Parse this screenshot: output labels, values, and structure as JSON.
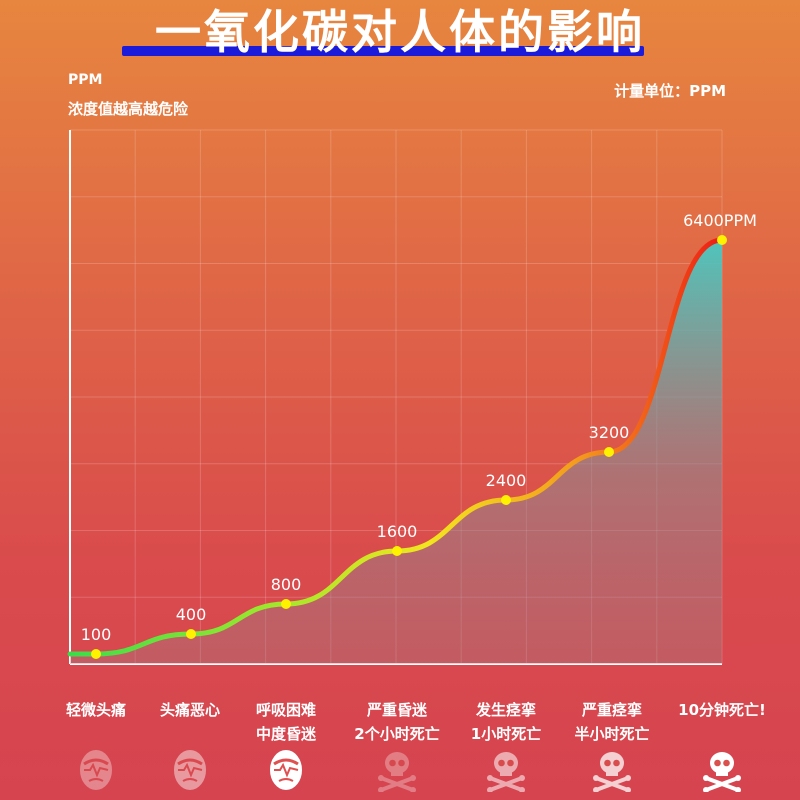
{
  "header": {
    "title": "一氧化碳对人体的影响",
    "unit_label": "PPM",
    "unit_desc": "浓度值越高越危险",
    "unit_note": "计量单位：PPM"
  },
  "chart_data": {
    "type": "line",
    "x": [
      1,
      2,
      3,
      4,
      5,
      6,
      7
    ],
    "values": [
      100,
      400,
      800,
      1600,
      2400,
      3200,
      6400
    ],
    "data_labels": [
      "100",
      "400",
      "800",
      "1600",
      "2400",
      "3200",
      "6400PPM"
    ],
    "categories": [
      {
        "line1": "轻微头痛",
        "line2": ""
      },
      {
        "line1": "头痛恶心",
        "line2": ""
      },
      {
        "line1": "呼吸困难",
        "line2": "中度昏迷"
      },
      {
        "line1": "严重昏迷",
        "line2": "2个小时死亡"
      },
      {
        "line1": "发生痉挛",
        "line2": "1小时死亡"
      },
      {
        "line1": "严重痉挛",
        "line2": "半小时死亡"
      },
      {
        "line1": "10分钟死亡!",
        "line2": ""
      }
    ],
    "icons": [
      "face-icon",
      "face-icon",
      "face-icon",
      "skull-icon",
      "skull-icon",
      "skull-icon",
      "skull-icon"
    ],
    "grid": true,
    "legend": "none",
    "colors": {
      "line_start": "#3ddc4a",
      "line_mid": "#f2e51e",
      "line_end": "#ee1c14",
      "area_top": "#47c9c2",
      "point": "#fff200"
    }
  }
}
